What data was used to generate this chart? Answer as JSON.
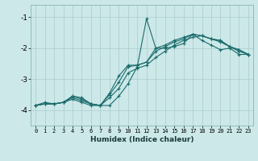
{
  "xlabel": "Humidex (Indice chaleur)",
  "bg_color": "#cce8e8",
  "grid_color": "#aacccc",
  "line_color": "#1a6b6b",
  "xlim": [
    -0.5,
    23.5
  ],
  "ylim": [
    -4.5,
    -0.6
  ],
  "yticks": [
    -4,
    -3,
    -2,
    -1
  ],
  "xticks": [
    0,
    1,
    2,
    3,
    4,
    5,
    6,
    7,
    8,
    9,
    10,
    11,
    12,
    13,
    14,
    15,
    16,
    17,
    18,
    19,
    20,
    21,
    22,
    23
  ],
  "series": [
    [
      -3.85,
      -3.75,
      -3.8,
      -3.75,
      -3.65,
      -3.75,
      -3.85,
      -3.85,
      -3.85,
      -3.55,
      -3.15,
      -2.6,
      -1.05,
      -2.0,
      -2.0,
      -1.95,
      -1.85,
      -1.55,
      -1.75,
      -1.9,
      -2.05,
      -2.0,
      -2.2,
      -2.2
    ],
    [
      -3.85,
      -3.8,
      -3.8,
      -3.75,
      -3.6,
      -3.7,
      -3.8,
      -3.85,
      -3.6,
      -3.3,
      -2.8,
      -2.65,
      -2.55,
      -2.3,
      -2.1,
      -1.9,
      -1.75,
      -1.65,
      -1.6,
      -1.7,
      -1.8,
      -1.95,
      -2.1,
      -2.2
    ],
    [
      -3.85,
      -3.8,
      -3.8,
      -3.75,
      -3.55,
      -3.65,
      -3.8,
      -3.85,
      -3.5,
      -3.1,
      -2.6,
      -2.55,
      -2.45,
      -2.1,
      -1.95,
      -1.8,
      -1.7,
      -1.55,
      -1.6,
      -1.7,
      -1.75,
      -1.95,
      -2.05,
      -2.2
    ],
    [
      -3.85,
      -3.8,
      -3.8,
      -3.75,
      -3.55,
      -3.6,
      -3.8,
      -3.85,
      -3.45,
      -2.9,
      -2.55,
      -2.55,
      -2.45,
      -2.0,
      -1.9,
      -1.75,
      -1.65,
      -1.55,
      -1.6,
      -1.7,
      -1.75,
      -1.95,
      -2.05,
      -2.2
    ]
  ]
}
